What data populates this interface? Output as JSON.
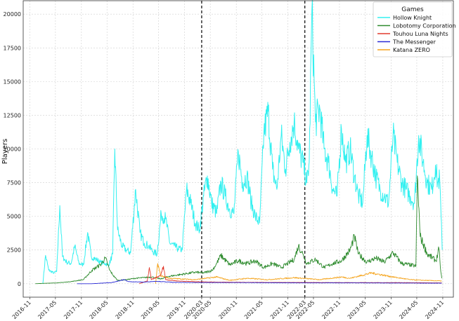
{
  "chart_data": {
    "type": "line",
    "title": "",
    "xlabel": "",
    "ylabel": "Players",
    "ylim": [
      -1000,
      21000
    ],
    "xlim": [
      "2016-09-15",
      "2025-01-15"
    ],
    "grid": true,
    "legend": {
      "title": "Games",
      "placement": "top-right"
    },
    "x_ticks": [
      "2016-11",
      "2017-05",
      "2017-11",
      "2018-05",
      "2018-11",
      "2019-05",
      "2019-11",
      "2020-03",
      "2020-05",
      "2020-11",
      "2021-05",
      "2021-11",
      "2022-03",
      "2022-05",
      "2022-11",
      "2023-05",
      "2023-11",
      "2024-05",
      "2024-11"
    ],
    "y_ticks": [
      0,
      2500,
      5000,
      7500,
      10000,
      12500,
      15000,
      17500,
      20000
    ],
    "vlines": [
      {
        "x": "2020-03-01",
        "style": "dashed",
        "color": "#000000"
      },
      {
        "x": "2022-03-01",
        "style": "dashed",
        "color": "#000000"
      }
    ],
    "series": [
      {
        "name": "Hollow Knight",
        "color": "#33f0f0",
        "points": [
          [
            "2017-02-01",
            0
          ],
          [
            "2017-02-20",
            2100
          ],
          [
            "2017-03-15",
            1000
          ],
          [
            "2017-04-20",
            800
          ],
          [
            "2017-05-10",
            900
          ],
          [
            "2017-06-01",
            5800
          ],
          [
            "2017-06-20",
            2000
          ],
          [
            "2017-07-20",
            1600
          ],
          [
            "2017-08-20",
            1500
          ],
          [
            "2017-09-15",
            2800
          ],
          [
            "2017-10-15",
            1500
          ],
          [
            "2017-11-15",
            1400
          ],
          [
            "2017-12-15",
            3800
          ],
          [
            "2018-01-10",
            2000
          ],
          [
            "2018-02-15",
            1800
          ],
          [
            "2018-03-15",
            1600
          ],
          [
            "2018-04-15",
            1500
          ],
          [
            "2018-05-15",
            1400
          ],
          [
            "2018-06-10",
            2200
          ],
          [
            "2018-06-25",
            10000
          ],
          [
            "2018-07-15",
            4000
          ],
          [
            "2018-08-15",
            2800
          ],
          [
            "2018-09-15",
            2500
          ],
          [
            "2018-10-15",
            2300
          ],
          [
            "2018-11-20",
            7000
          ],
          [
            "2018-12-20",
            3800
          ],
          [
            "2019-01-20",
            3000
          ],
          [
            "2019-02-20",
            2800
          ],
          [
            "2019-03-20",
            2400
          ],
          [
            "2019-04-20",
            2200
          ],
          [
            "2019-05-20",
            5200
          ],
          [
            "2019-06-20",
            4800
          ],
          [
            "2019-07-20",
            3000
          ],
          [
            "2019-08-20",
            2800
          ],
          [
            "2019-09-15",
            2600
          ],
          [
            "2019-10-15",
            2500
          ],
          [
            "2019-11-15",
            7000
          ],
          [
            "2019-12-15",
            6000
          ],
          [
            "2020-01-15",
            4500
          ],
          [
            "2020-02-15",
            4000
          ],
          [
            "2020-03-15",
            6500
          ],
          [
            "2020-04-10",
            8000
          ],
          [
            "2020-05-10",
            6000
          ],
          [
            "2020-06-15",
            5200
          ],
          [
            "2020-07-15",
            7500
          ],
          [
            "2020-08-15",
            6500
          ],
          [
            "2020-09-15",
            5500
          ],
          [
            "2020-10-15",
            5200
          ],
          [
            "2020-11-15",
            9800
          ],
          [
            "2020-12-15",
            7500
          ],
          [
            "2021-01-15",
            8000
          ],
          [
            "2021-02-15",
            6000
          ],
          [
            "2021-03-15",
            5000
          ],
          [
            "2021-04-15",
            4500
          ],
          [
            "2021-05-15",
            11200
          ],
          [
            "2021-06-15",
            12800
          ],
          [
            "2021-07-15",
            8500
          ],
          [
            "2021-08-15",
            7000
          ],
          [
            "2021-09-15",
            11000
          ],
          [
            "2021-10-15",
            8500
          ],
          [
            "2021-11-15",
            10500
          ],
          [
            "2021-12-15",
            12000
          ],
          [
            "2022-01-15",
            10000
          ],
          [
            "2022-02-15",
            9000
          ],
          [
            "2022-03-15",
            7500
          ],
          [
            "2022-04-01",
            9000
          ],
          [
            "2022-04-20",
            20300
          ],
          [
            "2022-05-15",
            12000
          ],
          [
            "2022-06-15",
            13000
          ],
          [
            "2022-07-15",
            10000
          ],
          [
            "2022-08-15",
            9000
          ],
          [
            "2022-09-15",
            7000
          ],
          [
            "2022-10-15",
            6500
          ],
          [
            "2022-11-15",
            11500
          ],
          [
            "2022-12-15",
            9000
          ],
          [
            "2023-01-15",
            10000
          ],
          [
            "2023-02-15",
            8000
          ],
          [
            "2023-03-15",
            6500
          ],
          [
            "2023-04-15",
            6000
          ],
          [
            "2023-05-15",
            11000
          ],
          [
            "2023-06-15",
            9500
          ],
          [
            "2023-07-15",
            8000
          ],
          [
            "2023-08-15",
            7000
          ],
          [
            "2023-09-15",
            6500
          ],
          [
            "2023-10-15",
            6000
          ],
          [
            "2023-11-15",
            11000
          ],
          [
            "2023-12-15",
            9000
          ],
          [
            "2024-01-15",
            7500
          ],
          [
            "2024-02-15",
            7000
          ],
          [
            "2024-03-15",
            6500
          ],
          [
            "2024-04-15",
            6000
          ],
          [
            "2024-05-15",
            11000
          ],
          [
            "2024-06-15",
            9000
          ],
          [
            "2024-07-15",
            7500
          ],
          [
            "2024-08-15",
            7000
          ],
          [
            "2024-09-10",
            8800
          ],
          [
            "2024-09-25",
            7500
          ],
          [
            "2024-10-10",
            7800
          ],
          [
            "2024-10-20",
            5000
          ],
          [
            "2024-10-28",
            2500
          ]
        ]
      },
      {
        "name": "Lobotomy Corporation",
        "color": "#2e8b2e",
        "points": [
          [
            "2016-12-10",
            0
          ],
          [
            "2017-02-15",
            30
          ],
          [
            "2017-05-15",
            60
          ],
          [
            "2017-08-15",
            150
          ],
          [
            "2017-11-15",
            300
          ],
          [
            "2018-01-15",
            1000
          ],
          [
            "2018-03-15",
            1400
          ],
          [
            "2018-04-20",
            1900
          ],
          [
            "2018-05-20",
            1000
          ],
          [
            "2018-06-15",
            600
          ],
          [
            "2018-07-15",
            250
          ],
          [
            "2018-09-15",
            300
          ],
          [
            "2018-11-15",
            400
          ],
          [
            "2019-01-15",
            450
          ],
          [
            "2019-03-15",
            500
          ],
          [
            "2019-05-15",
            350
          ],
          [
            "2019-07-15",
            550
          ],
          [
            "2019-09-15",
            650
          ],
          [
            "2019-11-15",
            750
          ],
          [
            "2020-01-15",
            850
          ],
          [
            "2020-03-15",
            800
          ],
          [
            "2020-05-15",
            1000
          ],
          [
            "2020-06-15",
            1500
          ],
          [
            "2020-07-15",
            2100
          ],
          [
            "2020-09-15",
            1400
          ],
          [
            "2020-11-15",
            1700
          ],
          [
            "2021-01-15",
            1500
          ],
          [
            "2021-03-15",
            1700
          ],
          [
            "2021-05-15",
            1200
          ],
          [
            "2021-07-15",
            1500
          ],
          [
            "2021-09-15",
            1200
          ],
          [
            "2021-11-15",
            1600
          ],
          [
            "2021-12-15",
            1800
          ],
          [
            "2022-01-15",
            2800
          ],
          [
            "2022-02-15",
            2200
          ],
          [
            "2022-03-15",
            1500
          ],
          [
            "2022-05-15",
            1800
          ],
          [
            "2022-07-15",
            1200
          ],
          [
            "2022-09-15",
            1500
          ],
          [
            "2022-11-15",
            1700
          ],
          [
            "2023-01-15",
            2500
          ],
          [
            "2023-02-15",
            3500
          ],
          [
            "2023-03-15",
            2200
          ],
          [
            "2023-05-15",
            1600
          ],
          [
            "2023-07-15",
            1900
          ],
          [
            "2023-09-15",
            1600
          ],
          [
            "2023-11-15",
            2300
          ],
          [
            "2024-01-15",
            1500
          ],
          [
            "2024-03-15",
            1400
          ],
          [
            "2024-04-25",
            1300
          ],
          [
            "2024-05-05",
            8000
          ],
          [
            "2024-05-25",
            3500
          ],
          [
            "2024-07-15",
            2200
          ],
          [
            "2024-09-15",
            1700
          ],
          [
            "2024-10-05",
            2600
          ],
          [
            "2024-10-15",
            1200
          ],
          [
            "2024-10-25",
            400
          ]
        ]
      },
      {
        "name": "Touhou Luna Nights",
        "color": "#e23b2e",
        "points": [
          [
            "2018-12-15",
            0
          ],
          [
            "2019-02-10",
            200
          ],
          [
            "2019-02-25",
            1200
          ],
          [
            "2019-03-10",
            300
          ],
          [
            "2019-05-15",
            600
          ],
          [
            "2019-06-05",
            1300
          ],
          [
            "2019-06-20",
            300
          ],
          [
            "2019-09-15",
            200
          ],
          [
            "2020-01-15",
            150
          ],
          [
            "2020-06-15",
            120
          ],
          [
            "2021-01-15",
            100
          ],
          [
            "2022-01-15",
            90
          ],
          [
            "2023-01-15",
            80
          ],
          [
            "2024-01-15",
            80
          ],
          [
            "2024-10-25",
            60
          ]
        ]
      },
      {
        "name": "The Messenger",
        "color": "#2a2ad6",
        "points": [
          [
            "2017-10-01",
            0
          ],
          [
            "2018-01-15",
            0
          ],
          [
            "2018-06-01",
            80
          ],
          [
            "2018-08-30",
            300
          ],
          [
            "2018-10-01",
            150
          ],
          [
            "2019-01-15",
            120
          ],
          [
            "2019-04-15",
            180
          ],
          [
            "2019-08-15",
            100
          ],
          [
            "2020-01-15",
            90
          ],
          [
            "2021-01-15",
            80
          ],
          [
            "2022-01-15",
            60
          ],
          [
            "2023-01-15",
            60
          ],
          [
            "2024-01-15",
            50
          ],
          [
            "2024-10-25",
            40
          ]
        ]
      },
      {
        "name": "Katana ZERO",
        "color": "#f5a41c",
        "points": [
          [
            "2019-04-10",
            0
          ],
          [
            "2019-04-25",
            1500
          ],
          [
            "2019-05-15",
            600
          ],
          [
            "2019-07-15",
            400
          ],
          [
            "2019-10-15",
            350
          ],
          [
            "2020-01-15",
            300
          ],
          [
            "2020-06-15",
            500
          ],
          [
            "2020-09-15",
            250
          ],
          [
            "2021-01-15",
            400
          ],
          [
            "2021-06-15",
            300
          ],
          [
            "2021-12-15",
            450
          ],
          [
            "2022-06-15",
            300
          ],
          [
            "2022-11-15",
            500
          ],
          [
            "2023-01-15",
            400
          ],
          [
            "2023-06-15",
            800
          ],
          [
            "2023-11-15",
            500
          ],
          [
            "2024-03-15",
            300
          ],
          [
            "2024-06-15",
            250
          ],
          [
            "2024-10-25",
            200
          ]
        ]
      }
    ]
  }
}
